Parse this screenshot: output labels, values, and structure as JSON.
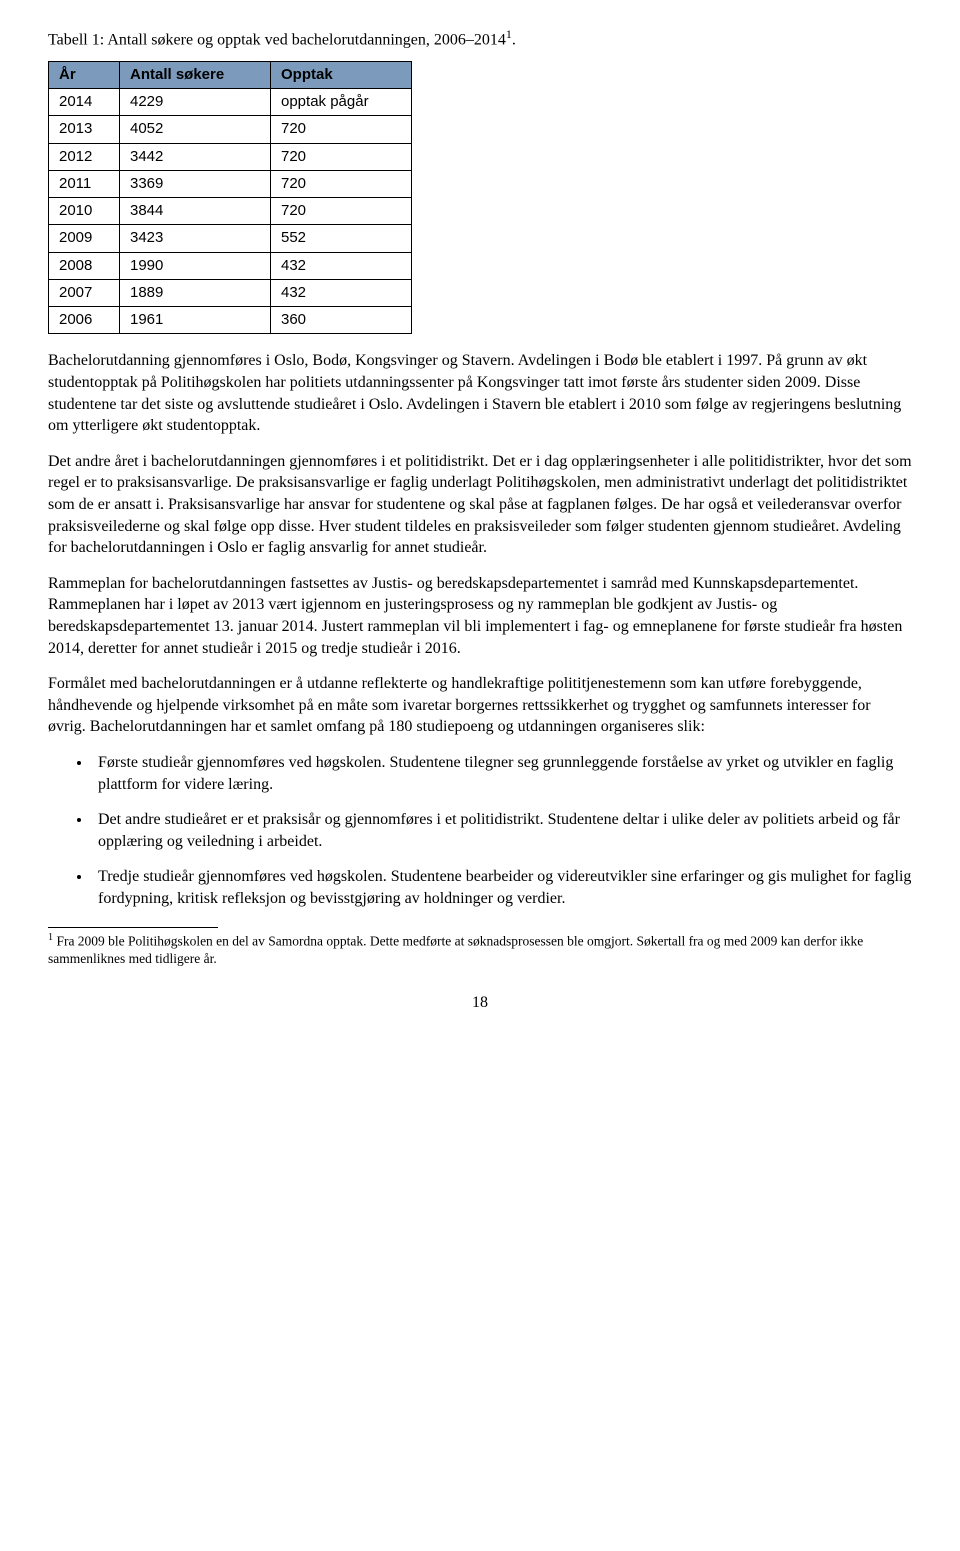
{
  "caption": {
    "text_before_sup": "Tabell 1: Antall søkere og opptak ved bachelorutdanningen, 2006–2014",
    "sup": "1",
    "text_after_sup": "."
  },
  "table": {
    "header_bg": "#7c9bbc",
    "border_color": "#000000",
    "font_family": "Arial",
    "font_size_pt": 11,
    "columns": [
      "År",
      "Antall søkere",
      "Opptak"
    ],
    "rows": [
      [
        "2014",
        "4229",
        "opptak pågår"
      ],
      [
        "2013",
        "4052",
        "720"
      ],
      [
        "2012",
        "3442",
        "720"
      ],
      [
        "2011",
        "3369",
        "720"
      ],
      [
        "2010",
        "3844",
        "720"
      ],
      [
        "2009",
        "3423",
        "552"
      ],
      [
        "2008",
        "1990",
        "432"
      ],
      [
        "2007",
        "1889",
        "432"
      ],
      [
        "2006",
        "1961",
        "360"
      ]
    ]
  },
  "paragraphs": {
    "p1": "Bachelorutdanning gjennomføres i Oslo, Bodø, Kongsvinger og Stavern. Avdelingen i Bodø ble etablert i 1997. På grunn av økt studentopptak på Politihøgskolen har politiets utdanningssenter på Kongsvinger tatt imot første års studenter siden 2009. Disse studentene tar det siste og avsluttende studieåret i Oslo. Avdelingen i Stavern ble etablert i 2010 som følge av regjeringens beslutning om ytterligere økt studentopptak.",
    "p2": "Det andre året i bachelorutdanningen gjennomføres i et politidistrikt. Det er i dag opplæringsenheter i alle politidistrikter, hvor det som regel er to praksisansvarlige. De praksisansvarlige er faglig underlagt Politihøgskolen, men administrativt underlagt det politidistriktet som de er ansatt i. Praksisansvarlige har ansvar for studentene og skal påse at fagplanen følges. De har også et veilederansvar overfor praksisveilederne og skal følge opp disse. Hver student tildeles en praksisveileder som følger studenten gjennom studieåret. Avdeling for bachelorutdanningen i Oslo er faglig ansvarlig for annet studieår.",
    "p3": "Rammeplan for bachelorutdanningen fastsettes av Justis- og beredskapsdepartementet i samråd med Kunnskapsdepartementet. Rammeplanen har i løpet av 2013 vært igjennom en justeringsprosess og ny rammeplan ble godkjent av Justis- og beredskapsdepartementet 13. januar 2014. Justert rammeplan vil bli implementert i fag- og emneplanene for første studieår fra høsten 2014, deretter for annet studieår i 2015 og tredje studieår i 2016.",
    "p4": "Formålet med bachelorutdanningen er å utdanne reflekterte og handlekraftige polititjenestemenn som kan utføre forebyggende, håndhevende og hjelpende virksomhet på en måte som ivaretar borgernes rettssikkerhet og trygghet og samfunnets interesser for øvrig. Bachelorutdanningen har et samlet omfang på 180 studiepoeng og utdanningen organiseres slik:"
  },
  "bullets": {
    "b1": "Første studieår gjennomføres ved høgskolen. Studentene tilegner seg grunnleggende forståelse av yrket og utvikler en faglig plattform for videre læring.",
    "b2": "Det andre studieåret er et praksisår og gjennomføres i et politidistrikt. Studentene deltar i ulike deler av politiets arbeid og får opplæring og veiledning i arbeidet.",
    "b3": "Tredje studieår gjennomføres ved høgskolen. Studentene bearbeider og videreutvikler sine erfaringer og gis mulighet for faglig fordypning, kritisk refleksjon og bevisstgjøring av holdninger og verdier."
  },
  "footnote": {
    "marker": "1",
    "text": " Fra 2009 ble Politihøgskolen en del av Samordna opptak. Dette medførte at søknadsprosessen ble omgjort. Søkertall fra og med 2009 kan derfor ikke sammenliknes med tidligere år."
  },
  "page_number": "18"
}
